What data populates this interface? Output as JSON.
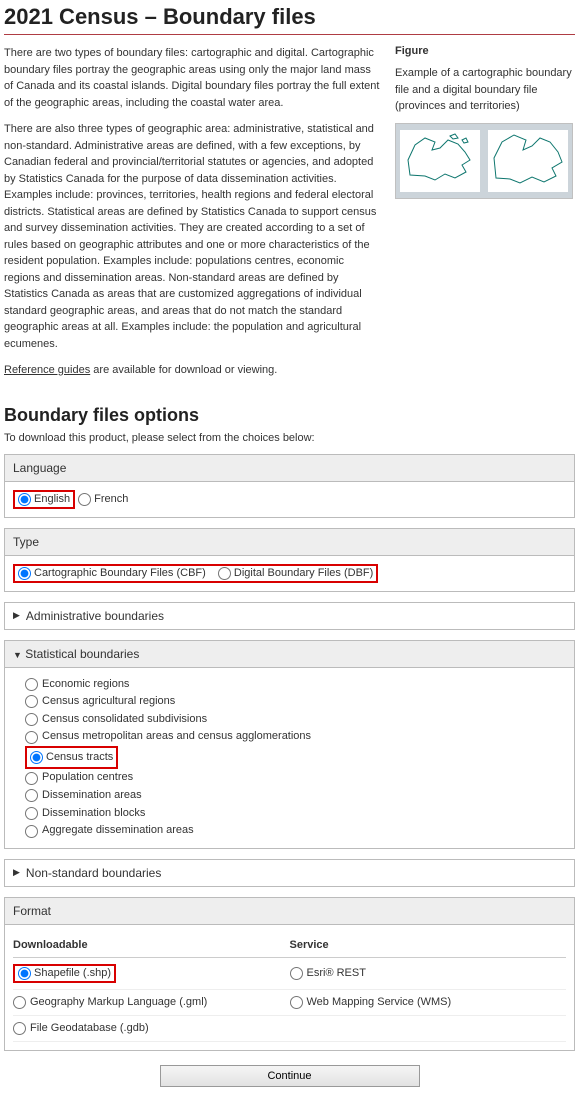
{
  "title": "2021 Census – Boundary files",
  "para1": "There are two types of boundary files: cartographic and digital. Cartographic boundary files portray the geographic areas using only the major land mass of Canada and its coastal islands. Digital boundary files portray the full extent of the geographic areas, including the coastal water area.",
  "para2": "There are also three types of geographic area: administrative, statistical and non-standard. Administrative areas are defined, with a few exceptions, by Canadian federal and provincial/territorial statutes or agencies, and adopted by Statistics Canada for the purpose of data dissemination activities. Examples include: provinces, territories, health regions and federal electoral districts. Statistical areas are defined by Statistics Canada to support census and survey dissemination activities. They are created according to a set of rules based on geographic attributes and one or more characteristics of the resident population. Examples include: populations centres, economic regions and dissemination areas. Non-standard areas are defined by Statistics Canada as areas that are customized aggregations of individual standard geographic areas, and areas that do not match the standard geographic areas at all. Examples include: the population and agricultural ecumenes.",
  "ref_link": "Reference guides",
  "ref_suffix": " are available for download or viewing.",
  "figure": {
    "title": "Figure",
    "desc": "Example of a cartographic boundary file and a digital boundary file (provinces and territories)"
  },
  "options": {
    "heading": "Boundary files options",
    "instruction": "To download this product, please select from the choices below:",
    "language": {
      "title": "Language",
      "opt1": "English",
      "opt2": "French"
    },
    "type": {
      "title": "Type",
      "opt1": "Cartographic Boundary Files (CBF)",
      "opt2": "Digital Boundary Files (DBF)"
    },
    "admin": "Administrative boundaries",
    "stat": {
      "title": "Statistical boundaries",
      "items": [
        "Economic regions",
        "Census agricultural regions",
        "Census consolidated subdivisions",
        "Census metropolitan areas and census agglomerations",
        "Census tracts",
        "Population centres",
        "Dissemination areas",
        "Dissemination blocks",
        "Aggregate dissemination areas"
      ],
      "selected_index": 4
    },
    "nonstd": "Non-standard boundaries",
    "format": {
      "title": "Format",
      "col1": "Downloadable",
      "col2": "Service",
      "rows": [
        {
          "d": "Shapefile (.shp)",
          "s": "Esri® REST",
          "d_selected": true,
          "d_highlight": true
        },
        {
          "d": "Geography Markup Language (.gml)",
          "s": "Web Mapping Service (WMS)"
        },
        {
          "d": "File Geodatabase (.gdb)",
          "s": ""
        }
      ]
    },
    "continue": "Continue"
  }
}
